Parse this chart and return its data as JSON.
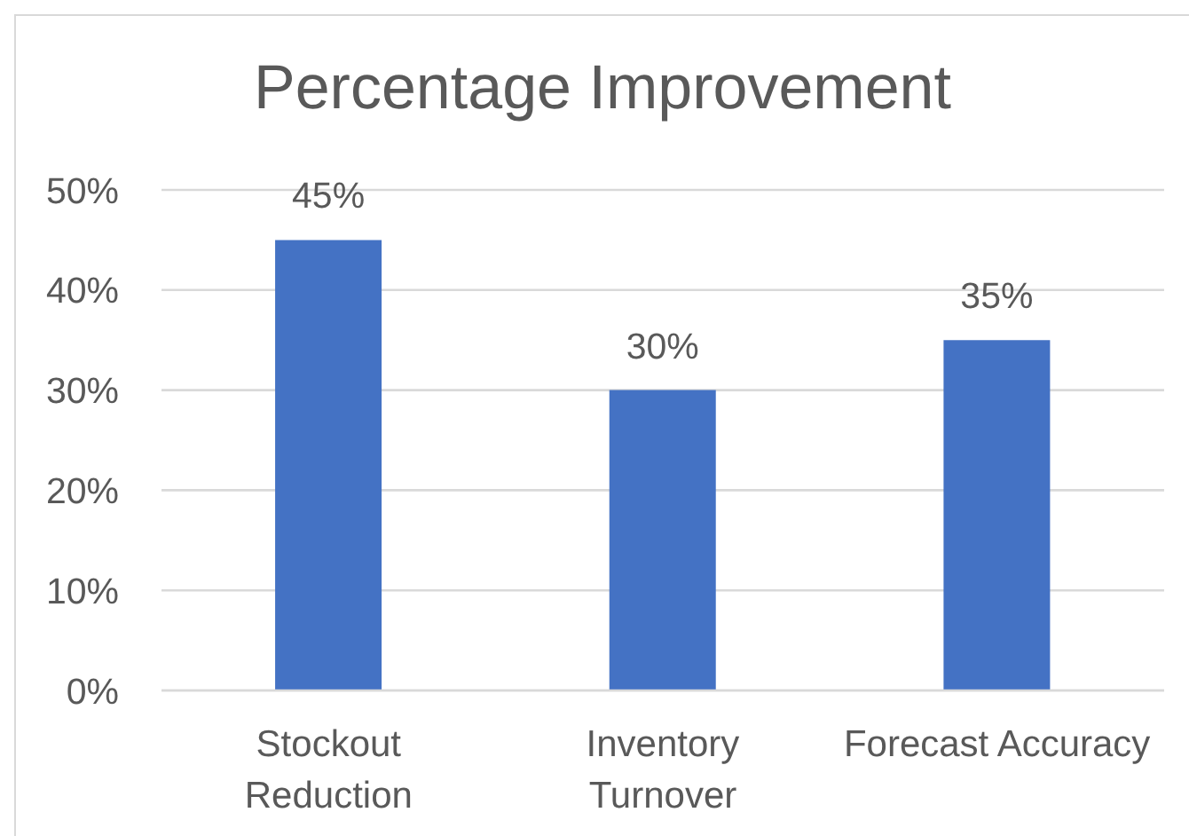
{
  "chart_data": {
    "type": "bar",
    "title": "Percentage Improvement",
    "categories": [
      "Stockout Reduction",
      "Inventory Turnover",
      "Forecast Accuracy"
    ],
    "values": [
      45,
      30,
      35
    ],
    "color": "#4472c4",
    "value_labels": [
      "45%",
      "30%",
      "35%"
    ],
    "ylim": [
      0,
      50
    ],
    "yticks": [
      {
        "value": 0,
        "label": "0%"
      },
      {
        "value": 10,
        "label": "10%"
      },
      {
        "value": 20,
        "label": "20%"
      },
      {
        "value": 30,
        "label": "30%"
      },
      {
        "value": 40,
        "label": "40%"
      },
      {
        "value": 50,
        "label": "50%"
      }
    ],
    "grid": "y"
  }
}
